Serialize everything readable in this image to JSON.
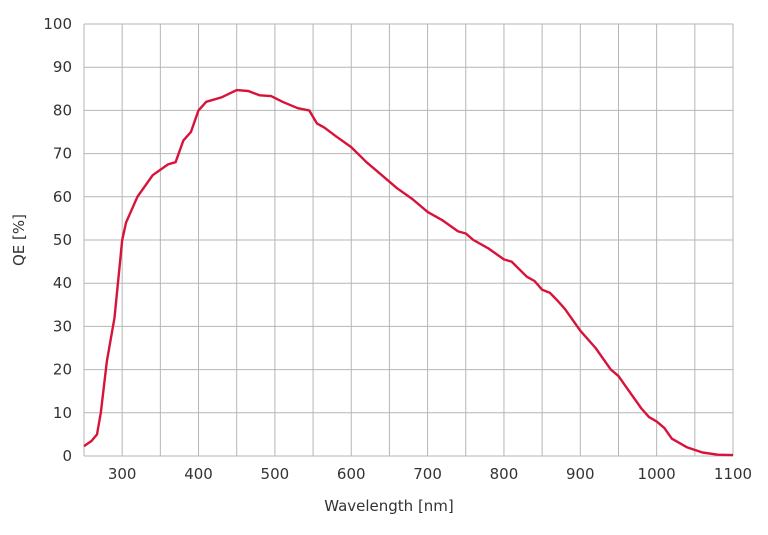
{
  "chart_data": {
    "type": "line",
    "title": "",
    "xlabel": "Wavelength [nm]",
    "ylabel": "QE [%]",
    "xlim": [
      250,
      1100
    ],
    "ylim": [
      0,
      100
    ],
    "xticks": [
      300,
      400,
      500,
      600,
      700,
      800,
      900,
      1000,
      1100
    ],
    "yticks": [
      0,
      10,
      20,
      30,
      40,
      50,
      60,
      70,
      80,
      90,
      100
    ],
    "grid": true,
    "grid_x_step": 50,
    "line_color": "#d8133a",
    "series": [
      {
        "x": [
          250,
          260,
          267,
          272,
          280,
          290,
          300,
          305,
          320,
          340,
          360,
          370,
          380,
          390,
          400,
          410,
          430,
          450,
          465,
          480,
          495,
          510,
          530,
          545,
          555,
          565,
          580,
          600,
          620,
          640,
          650,
          660,
          680,
          700,
          720,
          740,
          750,
          760,
          780,
          800,
          810,
          830,
          840,
          850,
          860,
          870,
          880,
          900,
          920,
          940,
          950,
          960,
          980,
          990,
          1000,
          1010,
          1020,
          1040,
          1060,
          1080,
          1100
        ],
        "y": [
          2.3,
          3.5,
          5,
          10,
          22,
          32,
          50,
          54,
          60,
          65,
          67.5,
          68,
          73,
          75,
          80,
          82,
          83,
          84.7,
          84.5,
          83.5,
          83.3,
          82,
          80.5,
          80,
          77,
          76,
          74,
          71.5,
          68,
          65,
          63.5,
          62,
          59.5,
          56.5,
          54.5,
          52,
          51.5,
          50,
          48,
          45.5,
          45,
          41.5,
          40.5,
          38.5,
          37.8,
          36,
          34,
          29,
          25,
          20,
          18.5,
          16,
          11,
          9,
          8,
          6.5,
          4,
          2,
          0.8,
          0.3,
          0.2
        ]
      }
    ]
  }
}
